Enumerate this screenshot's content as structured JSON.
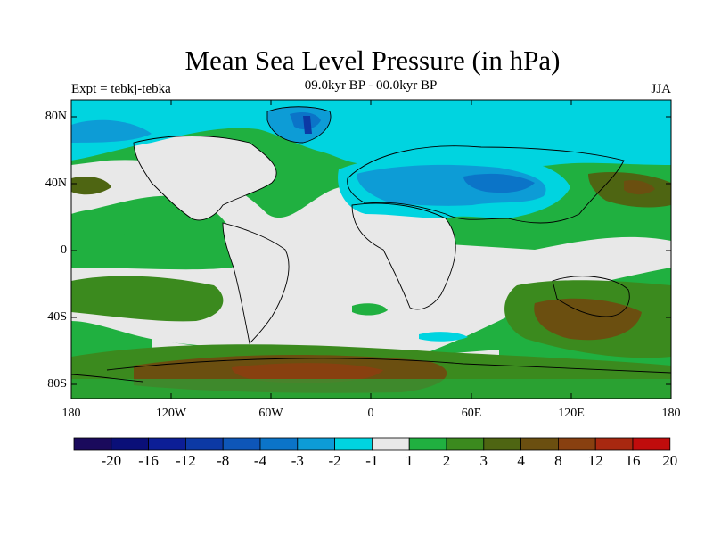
{
  "title": "Mean Sea Level Pressure (in hPa)",
  "subtitle_left": "Expt = tebkj-tebka",
  "subtitle_center": "09.0kyr BP - 00.0kyr BP",
  "subtitle_right": "JJA",
  "lat_labels": [
    "80N",
    "40N",
    "0",
    "40S",
    "80S"
  ],
  "lon_labels": [
    "180",
    "120W",
    "60W",
    "0",
    "60E",
    "120E",
    "180"
  ],
  "colorbar": {
    "colors": [
      "#1a0a5c",
      "#0a0f78",
      "#0c1e96",
      "#0c39a5",
      "#0e56b8",
      "#0b74c8",
      "#0d9cd6",
      "#00d4e0",
      "#e8e8e8",
      "#20b040",
      "#3b8a1e",
      "#4e6512",
      "#6b4f10",
      "#884010",
      "#a82810",
      "#c00c0c"
    ],
    "labels": [
      "-20",
      "-16",
      "-12",
      "-8",
      "-4",
      "-3",
      "-2",
      "-1",
      "1",
      "2",
      "3",
      "4",
      "8",
      "12",
      "16",
      "20"
    ]
  }
}
